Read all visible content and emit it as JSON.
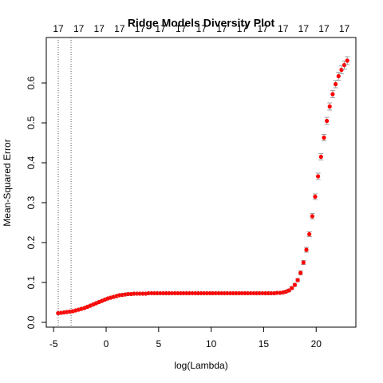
{
  "chart_data": {
    "type": "errorbar",
    "title": "Ridge Models Diversity Plot",
    "x_label": "log(Lambda)",
    "y_label": "Mean-Squared Error",
    "color": "#ff0000",
    "error_color": "#a0a0a0",
    "x": [
      -4.56,
      -4.28,
      -4.0,
      -3.73,
      -3.45,
      -3.17,
      -2.89,
      -2.61,
      -2.34,
      -2.06,
      -1.78,
      -1.5,
      -1.22,
      -0.95,
      -0.67,
      -0.39,
      -0.11,
      0.17,
      0.44,
      0.72,
      1.0,
      1.28,
      1.56,
      1.83,
      2.11,
      2.39,
      2.67,
      2.95,
      3.22,
      3.5,
      3.78,
      4.06,
      4.34,
      4.61,
      4.89,
      5.17,
      5.45,
      5.73,
      6.0,
      6.28,
      6.56,
      6.84,
      7.12,
      7.39,
      7.67,
      7.95,
      8.23,
      8.51,
      8.78,
      9.06,
      9.34,
      9.62,
      9.9,
      10.17,
      10.45,
      10.73,
      11.01,
      11.29,
      11.56,
      11.84,
      12.12,
      12.4,
      12.68,
      12.95,
      13.23,
      13.51,
      13.79,
      14.07,
      14.34,
      14.62,
      14.9,
      15.18,
      15.46,
      15.73,
      16.01,
      16.29,
      16.57,
      16.85,
      17.12,
      17.4,
      17.68,
      17.96,
      18.24,
      18.51,
      18.79,
      19.07,
      19.35,
      19.63,
      19.9,
      20.18,
      20.46,
      20.74,
      21.02,
      21.29,
      21.57,
      21.85,
      22.13,
      22.41,
      22.68,
      22.96
    ],
    "values": [
      0.023,
      0.024,
      0.025,
      0.026,
      0.027,
      0.028,
      0.03,
      0.032,
      0.034,
      0.036,
      0.039,
      0.042,
      0.045,
      0.048,
      0.051,
      0.054,
      0.057,
      0.06,
      0.062,
      0.064,
      0.066,
      0.068,
      0.069,
      0.07,
      0.071,
      0.071,
      0.072,
      0.072,
      0.072,
      0.072,
      0.072,
      0.073,
      0.073,
      0.073,
      0.073,
      0.073,
      0.073,
      0.073,
      0.073,
      0.073,
      0.073,
      0.073,
      0.073,
      0.073,
      0.073,
      0.073,
      0.073,
      0.073,
      0.073,
      0.073,
      0.073,
      0.073,
      0.073,
      0.073,
      0.073,
      0.073,
      0.073,
      0.073,
      0.073,
      0.073,
      0.073,
      0.073,
      0.073,
      0.073,
      0.073,
      0.073,
      0.073,
      0.073,
      0.073,
      0.073,
      0.073,
      0.073,
      0.073,
      0.073,
      0.073,
      0.074,
      0.074,
      0.075,
      0.077,
      0.08,
      0.086,
      0.094,
      0.106,
      0.124,
      0.15,
      0.182,
      0.221,
      0.266,
      0.315,
      0.366,
      0.415,
      0.463,
      0.505,
      0.541,
      0.572,
      0.597,
      0.617,
      0.633,
      0.645,
      0.656
    ],
    "errors": [
      0.002,
      0.002,
      0.002,
      0.002,
      0.002,
      0.002,
      0.002,
      0.002,
      0.002,
      0.002,
      0.002,
      0.002,
      0.002,
      0.002,
      0.002,
      0.002,
      0.002,
      0.002,
      0.002,
      0.002,
      0.002,
      0.003,
      0.003,
      0.003,
      0.003,
      0.003,
      0.003,
      0.003,
      0.003,
      0.003,
      0.003,
      0.003,
      0.003,
      0.003,
      0.003,
      0.003,
      0.003,
      0.003,
      0.003,
      0.003,
      0.003,
      0.003,
      0.003,
      0.003,
      0.003,
      0.003,
      0.003,
      0.003,
      0.003,
      0.003,
      0.003,
      0.003,
      0.003,
      0.003,
      0.003,
      0.003,
      0.003,
      0.003,
      0.003,
      0.003,
      0.003,
      0.003,
      0.003,
      0.003,
      0.003,
      0.003,
      0.003,
      0.003,
      0.003,
      0.003,
      0.003,
      0.003,
      0.003,
      0.003,
      0.003,
      0.003,
      0.003,
      0.003,
      0.003,
      0.003,
      0.003,
      0.004,
      0.004,
      0.005,
      0.005,
      0.006,
      0.006,
      0.007,
      0.007,
      0.008,
      0.008,
      0.008,
      0.009,
      0.009,
      0.009,
      0.009,
      0.01,
      0.01,
      0.01,
      0.01
    ],
    "vlines": [
      -4.56,
      -3.34
    ],
    "xlim": [
      -5.7,
      23.78
    ],
    "ylim": [
      -0.012,
      0.714
    ],
    "xticks": [
      -5,
      0,
      5,
      10,
      15,
      20
    ],
    "yticks": [
      {
        "value": 0,
        "label": "0.0"
      },
      0.1,
      0.2,
      0.3,
      0.4,
      0.5,
      0.6
    ],
    "top_ticks": [
      {
        "value": -4.56,
        "label": "17"
      },
      {
        "value": -2.61,
        "label": "17"
      },
      {
        "value": -0.67,
        "label": "17"
      },
      {
        "value": 1.28,
        "label": "17"
      },
      {
        "value": 3.22,
        "label": "17"
      },
      {
        "value": 5.17,
        "label": "17"
      },
      {
        "value": 7.12,
        "label": "17"
      },
      {
        "value": 9.06,
        "label": "17"
      },
      {
        "value": 11.01,
        "label": "17"
      },
      {
        "value": 12.95,
        "label": "17"
      },
      {
        "value": 14.9,
        "label": "17"
      },
      {
        "value": 16.85,
        "label": "17"
      },
      {
        "value": 18.79,
        "label": "17"
      },
      {
        "value": 20.74,
        "label": "17"
      },
      {
        "value": 22.68,
        "label": "17"
      }
    ]
  }
}
